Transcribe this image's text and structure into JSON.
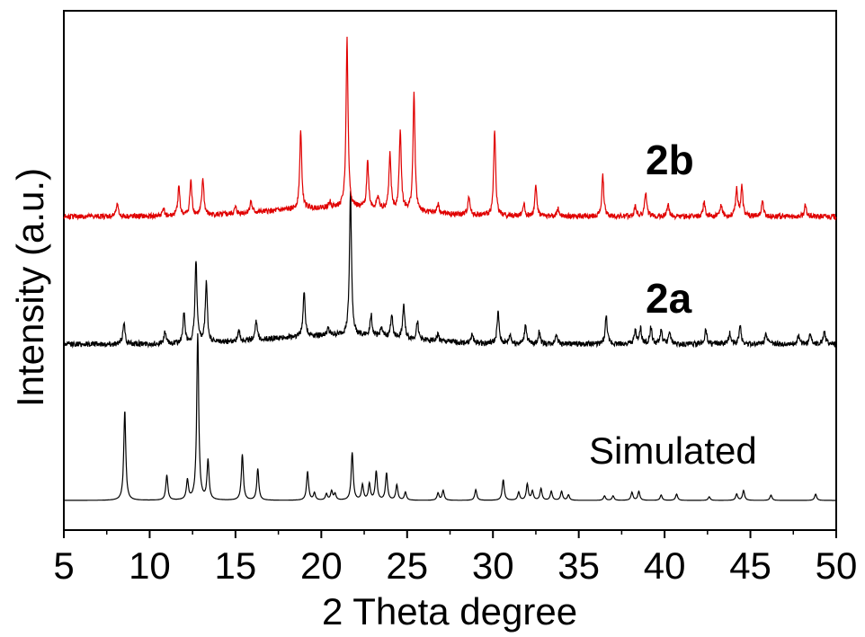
{
  "chart_data": {
    "type": "line",
    "title": "",
    "xlabel": "2 Theta degree",
    "ylabel": "Intensity (a.u.)",
    "xlim": [
      5,
      50
    ],
    "xticks": [
      5,
      10,
      15,
      20,
      25,
      30,
      35,
      40,
      45,
      50
    ],
    "xtick_labels": [
      "5",
      "10",
      "15",
      "20",
      "25",
      "30",
      "35",
      "40",
      "45",
      "50"
    ],
    "yticks_shown": false,
    "grid": false,
    "legend": "none; series labelled inline",
    "series": [
      {
        "name": "Simulated",
        "color": "#000000",
        "baseline": 0,
        "noise": 0,
        "peaks": [
          [
            8.55,
            100
          ],
          [
            11.0,
            28
          ],
          [
            12.2,
            22
          ],
          [
            12.8,
            185
          ],
          [
            13.4,
            44
          ],
          [
            15.4,
            51
          ],
          [
            16.3,
            35
          ],
          [
            19.2,
            32
          ],
          [
            19.6,
            8
          ],
          [
            20.3,
            7
          ],
          [
            20.6,
            10
          ],
          [
            20.8,
            7
          ],
          [
            21.8,
            53
          ],
          [
            22.4,
            17
          ],
          [
            22.8,
            18
          ],
          [
            23.2,
            32
          ],
          [
            23.8,
            30
          ],
          [
            24.4,
            17
          ],
          [
            24.9,
            9
          ],
          [
            26.8,
            8
          ],
          [
            27.1,
            11
          ],
          [
            29.0,
            12
          ],
          [
            30.6,
            23
          ],
          [
            31.5,
            9
          ],
          [
            32.0,
            18
          ],
          [
            32.3,
            10
          ],
          [
            32.8,
            13
          ],
          [
            33.4,
            10
          ],
          [
            34.0,
            10
          ],
          [
            34.4,
            6
          ],
          [
            36.5,
            5
          ],
          [
            37.0,
            5
          ],
          [
            38.1,
            9
          ],
          [
            38.5,
            10
          ],
          [
            39.8,
            6
          ],
          [
            40.7,
            7
          ],
          [
            42.6,
            4
          ],
          [
            44.2,
            7
          ],
          [
            44.6,
            11
          ],
          [
            46.2,
            6
          ],
          [
            48.8,
            7
          ]
        ]
      },
      {
        "name": "2a",
        "color": "#000000",
        "baseline": 174,
        "noise": 3,
        "peaks": [
          [
            8.5,
            25
          ],
          [
            10.9,
            13
          ],
          [
            12.0,
            33
          ],
          [
            12.7,
            92
          ],
          [
            13.3,
            68
          ],
          [
            15.2,
            12
          ],
          [
            16.2,
            22
          ],
          [
            19.0,
            51
          ],
          [
            20.4,
            7
          ],
          [
            21.7,
            160
          ],
          [
            22.9,
            24
          ],
          [
            23.5,
            11
          ],
          [
            24.1,
            26
          ],
          [
            24.8,
            38
          ],
          [
            25.6,
            20
          ],
          [
            26.8,
            8
          ],
          [
            28.8,
            10
          ],
          [
            30.3,
            35
          ],
          [
            31.0,
            10
          ],
          [
            31.9,
            22
          ],
          [
            32.7,
            14
          ],
          [
            33.7,
            12
          ],
          [
            36.6,
            31
          ],
          [
            38.3,
            15
          ],
          [
            38.6,
            17
          ],
          [
            39.2,
            19
          ],
          [
            39.8,
            15
          ],
          [
            40.3,
            14
          ],
          [
            42.4,
            17
          ],
          [
            43.8,
            12
          ],
          [
            44.4,
            21
          ],
          [
            45.9,
            14
          ],
          [
            47.8,
            9
          ],
          [
            48.5,
            12
          ],
          [
            49.3,
            15
          ]
        ]
      },
      {
        "name": "2b",
        "color": "#e00000",
        "baseline": 316,
        "noise": 3,
        "peaks": [
          [
            8.1,
            15
          ],
          [
            10.8,
            9
          ],
          [
            11.7,
            33
          ],
          [
            12.4,
            39
          ],
          [
            13.1,
            41
          ],
          [
            15.0,
            7
          ],
          [
            15.9,
            13
          ],
          [
            18.8,
            86
          ],
          [
            20.5,
            6
          ],
          [
            21.5,
            188
          ],
          [
            22.7,
            52
          ],
          [
            23.3,
            14
          ],
          [
            24.0,
            62
          ],
          [
            24.6,
            90
          ],
          [
            25.4,
            130
          ],
          [
            26.8,
            11
          ],
          [
            28.6,
            22
          ],
          [
            30.1,
            94
          ],
          [
            31.8,
            15
          ],
          [
            32.5,
            35
          ],
          [
            33.8,
            10
          ],
          [
            36.4,
            45
          ],
          [
            38.3,
            12
          ],
          [
            38.9,
            28
          ],
          [
            40.2,
            14
          ],
          [
            42.3,
            17
          ],
          [
            43.3,
            12
          ],
          [
            44.2,
            31
          ],
          [
            44.5,
            33
          ],
          [
            45.7,
            18
          ],
          [
            48.2,
            12
          ]
        ]
      }
    ],
    "annotations": [
      {
        "text": "2b",
        "style": "bold",
        "color": "#000000"
      },
      {
        "text": "2a",
        "style": "bold",
        "color": "#000000"
      },
      {
        "text": "Simulated",
        "style": "plain",
        "color": "#000000"
      }
    ]
  }
}
